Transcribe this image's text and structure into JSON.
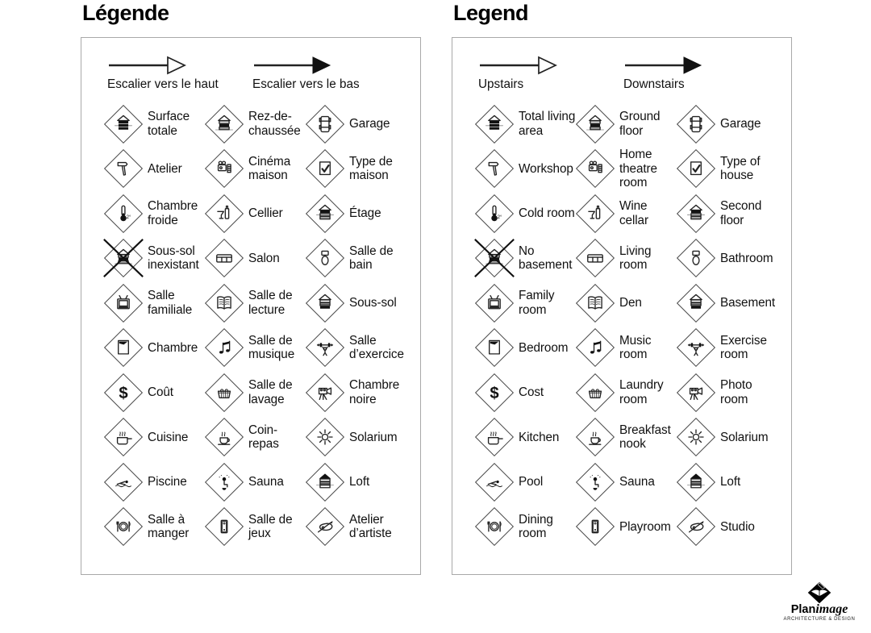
{
  "panels": [
    {
      "id": "french",
      "title": "Légende",
      "arrows": [
        {
          "label": "Escalier vers le haut",
          "style": "outline"
        },
        {
          "label": "Escalier vers le bas",
          "style": "filled"
        }
      ],
      "items": [
        {
          "label": "Surface totale",
          "icon": "total-living-area-icon",
          "glyph": "stack-all"
        },
        {
          "label": "Rez-de-chaussée",
          "icon": "ground-floor-icon",
          "glyph": "stack-mid"
        },
        {
          "label": "Garage",
          "icon": "garage-icon",
          "glyph": "car"
        },
        {
          "label": "Atelier",
          "icon": "workshop-icon",
          "glyph": "hammer"
        },
        {
          "label": "Cinéma maison",
          "icon": "home-theatre-icon",
          "glyph": "projector"
        },
        {
          "label": "Type de maison",
          "icon": "type-of-house-icon",
          "glyph": "check"
        },
        {
          "label": "Chambre froide",
          "icon": "cold-room-icon",
          "glyph": "thermo"
        },
        {
          "label": "Cellier",
          "icon": "wine-cellar-icon",
          "glyph": "wine"
        },
        {
          "label": "Étage",
          "icon": "second-floor-icon",
          "glyph": "stack-top"
        },
        {
          "label": "Sous-sol inexistant",
          "icon": "no-basement-icon",
          "glyph": "stack-mid",
          "crossed": true
        },
        {
          "label": "Salon",
          "icon": "living-room-icon",
          "glyph": "sofa"
        },
        {
          "label": "Salle de bain",
          "icon": "bathroom-icon",
          "glyph": "toilet"
        },
        {
          "label": "Salle familiale",
          "icon": "family-room-icon",
          "glyph": "tv"
        },
        {
          "label": "Salle de lecture",
          "icon": "den-icon",
          "glyph": "book"
        },
        {
          "label": "Sous-sol",
          "icon": "basement-icon",
          "glyph": "stack-bottom"
        },
        {
          "label": "Chambre",
          "icon": "bedroom-icon",
          "glyph": "bed"
        },
        {
          "label": "Salle de musique",
          "icon": "music-room-icon",
          "glyph": "notes"
        },
        {
          "label": "Salle d’exercice",
          "icon": "exercise-room-icon",
          "glyph": "weights"
        },
        {
          "label": "Coût",
          "icon": "cost-icon",
          "glyph": "dollar"
        },
        {
          "label": "Salle de lavage",
          "icon": "laundry-room-icon",
          "glyph": "basket"
        },
        {
          "label": "Chambre noire",
          "icon": "photo-room-icon",
          "glyph": "camera"
        },
        {
          "label": "Cuisine",
          "icon": "kitchen-icon",
          "glyph": "pot"
        },
        {
          "label": "Coin-repas",
          "icon": "breakfast-nook-icon",
          "glyph": "cup"
        },
        {
          "label": "Solarium",
          "icon": "solarium-icon",
          "glyph": "sun"
        },
        {
          "label": "Piscine",
          "icon": "pool-icon",
          "glyph": "swimmer"
        },
        {
          "label": "Sauna",
          "icon": "sauna-icon",
          "glyph": "sauna"
        },
        {
          "label": "Loft",
          "icon": "loft-icon",
          "glyph": "roof-dark"
        },
        {
          "label": "Salle à manger",
          "icon": "dining-room-icon",
          "glyph": "plate"
        },
        {
          "label": "Salle de jeux",
          "icon": "playroom-icon",
          "glyph": "pooltable"
        },
        {
          "label": "Atelier d’artiste",
          "icon": "studio-icon",
          "glyph": "palette"
        }
      ]
    },
    {
      "id": "english",
      "title": "Legend",
      "arrows": [
        {
          "label": "Upstairs",
          "style": "outline"
        },
        {
          "label": "Downstairs",
          "style": "filled"
        }
      ],
      "items": [
        {
          "label": "Total living area",
          "icon": "total-living-area-icon",
          "glyph": "stack-all"
        },
        {
          "label": "Ground floor",
          "icon": "ground-floor-icon",
          "glyph": "stack-mid"
        },
        {
          "label": "Garage",
          "icon": "garage-icon",
          "glyph": "car"
        },
        {
          "label": "Workshop",
          "icon": "workshop-icon",
          "glyph": "hammer"
        },
        {
          "label": "Home theatre room",
          "icon": "home-theatre-icon",
          "glyph": "projector"
        },
        {
          "label": "Type of house",
          "icon": "type-of-house-icon",
          "glyph": "check"
        },
        {
          "label": "Cold room",
          "icon": "cold-room-icon",
          "glyph": "thermo"
        },
        {
          "label": "Wine cellar",
          "icon": "wine-cellar-icon",
          "glyph": "wine"
        },
        {
          "label": "Second floor",
          "icon": "second-floor-icon",
          "glyph": "stack-top"
        },
        {
          "label": "No basement",
          "icon": "no-basement-icon",
          "glyph": "stack-mid",
          "crossed": true
        },
        {
          "label": "Living room",
          "icon": "living-room-icon",
          "glyph": "sofa"
        },
        {
          "label": "Bathroom",
          "icon": "bathroom-icon",
          "glyph": "toilet"
        },
        {
          "label": "Family room",
          "icon": "family-room-icon",
          "glyph": "tv"
        },
        {
          "label": "Den",
          "icon": "den-icon",
          "glyph": "book"
        },
        {
          "label": "Basement",
          "icon": "basement-icon",
          "glyph": "stack-bottom"
        },
        {
          "label": "Bedroom",
          "icon": "bedroom-icon",
          "glyph": "bed"
        },
        {
          "label": "Music room",
          "icon": "music-room-icon",
          "glyph": "notes"
        },
        {
          "label": "Exercise room",
          "icon": "exercise-room-icon",
          "glyph": "weights"
        },
        {
          "label": "Cost",
          "icon": "cost-icon",
          "glyph": "dollar"
        },
        {
          "label": "Laundry room",
          "icon": "laundry-room-icon",
          "glyph": "basket"
        },
        {
          "label": "Photo room",
          "icon": "photo-room-icon",
          "glyph": "camera"
        },
        {
          "label": "Kitchen",
          "icon": "kitchen-icon",
          "glyph": "pot"
        },
        {
          "label": "Breakfast nook",
          "icon": "breakfast-nook-icon",
          "glyph": "cup"
        },
        {
          "label": "Solarium",
          "icon": "solarium-icon",
          "glyph": "sun"
        },
        {
          "label": "Pool",
          "icon": "pool-icon",
          "glyph": "swimmer"
        },
        {
          "label": "Sauna",
          "icon": "sauna-icon",
          "glyph": "sauna"
        },
        {
          "label": "Loft",
          "icon": "loft-icon",
          "glyph": "roof-dark"
        },
        {
          "label": "Dining room",
          "icon": "dining-room-icon",
          "glyph": "plate"
        },
        {
          "label": "Playroom",
          "icon": "playroom-icon",
          "glyph": "pooltable"
        },
        {
          "label": "Studio",
          "icon": "studio-icon",
          "glyph": "palette"
        }
      ]
    }
  ],
  "logo": {
    "brand_bold": "Plan",
    "brand_script": "image",
    "tagline": "ARCHITECTURE & DESIGN"
  }
}
